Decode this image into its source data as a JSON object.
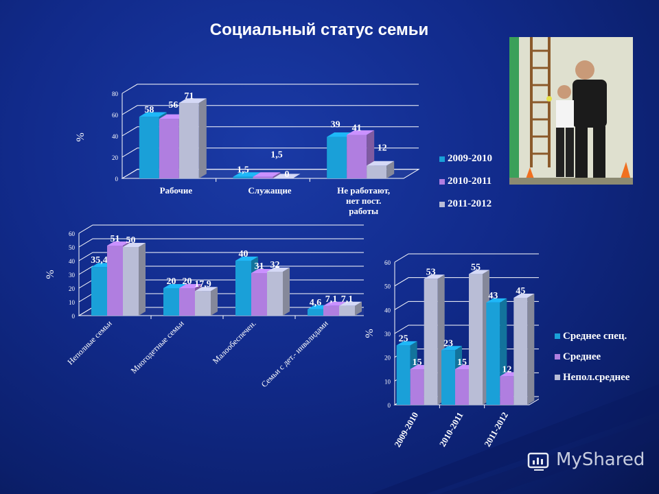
{
  "title": "Социальный статус семьи",
  "photo": {
    "alt": "photo-boy-and-coach"
  },
  "watermark": "MyShared",
  "colors": {
    "s1": "#1aa0d8",
    "s2": "#b07ee0",
    "s3": "#b9bdd6"
  },
  "chart_data": [
    {
      "type": "bar",
      "ylabel": "%",
      "ylim": [
        0,
        80
      ],
      "yticks": [
        "0",
        "20",
        "40",
        "60",
        "80"
      ],
      "categories": [
        "Рабочие",
        "Служащие",
        "Не работают, нет пост. работы"
      ],
      "series": [
        {
          "name": "2009-2010",
          "values": [
            58,
            1.5,
            39
          ],
          "labels": [
            "58",
            "1,5",
            "39"
          ]
        },
        {
          "name": "2010-2011",
          "values": [
            56,
            1.5,
            41
          ],
          "labels": [
            "56",
            "1,5",
            "41"
          ]
        },
        {
          "name": "2011-2012",
          "values": [
            71,
            0,
            12
          ],
          "labels": [
            "71",
            "0",
            "12"
          ]
        }
      ],
      "legend": "right"
    },
    {
      "type": "bar",
      "ylabel": "%",
      "ylim": [
        0,
        60
      ],
      "yticks": [
        "0",
        "10",
        "20",
        "30",
        "40",
        "50",
        "60"
      ],
      "categories": [
        "Неполные семьи",
        "Многодетные семьи",
        "Малообеспечен.",
        "Семьи с дет.- инвалидами"
      ],
      "series": [
        {
          "values": [
            35.4,
            20,
            40,
            4.6
          ],
          "labels": [
            "35,4",
            "20",
            "40",
            "4,6"
          ]
        },
        {
          "values": [
            51,
            20,
            31,
            7.1
          ],
          "labels": [
            "51",
            "20",
            "31",
            "7,1"
          ]
        },
        {
          "values": [
            50,
            17.9,
            32,
            7.1
          ],
          "labels": [
            "50",
            "17,9",
            "32",
            "7,1"
          ]
        }
      ]
    },
    {
      "type": "bar",
      "ylabel": "%",
      "ylim": [
        0,
        60
      ],
      "yticks": [
        "0",
        "10",
        "20",
        "30",
        "40",
        "50",
        "60"
      ],
      "categories": [
        "2009-2010",
        "2010-2011",
        "2011-2012"
      ],
      "series": [
        {
          "name": "Среднее спец.",
          "values": [
            25,
            23,
            43
          ],
          "labels": [
            "25",
            "23",
            "43"
          ]
        },
        {
          "name": "Среднее",
          "values": [
            15,
            15,
            12
          ],
          "labels": [
            "15",
            "15",
            "12"
          ]
        },
        {
          "name": "Непол.среднее",
          "values": [
            53,
            55,
            45
          ],
          "labels": [
            "53",
            "55",
            "45"
          ]
        }
      ],
      "legend": "right"
    }
  ]
}
